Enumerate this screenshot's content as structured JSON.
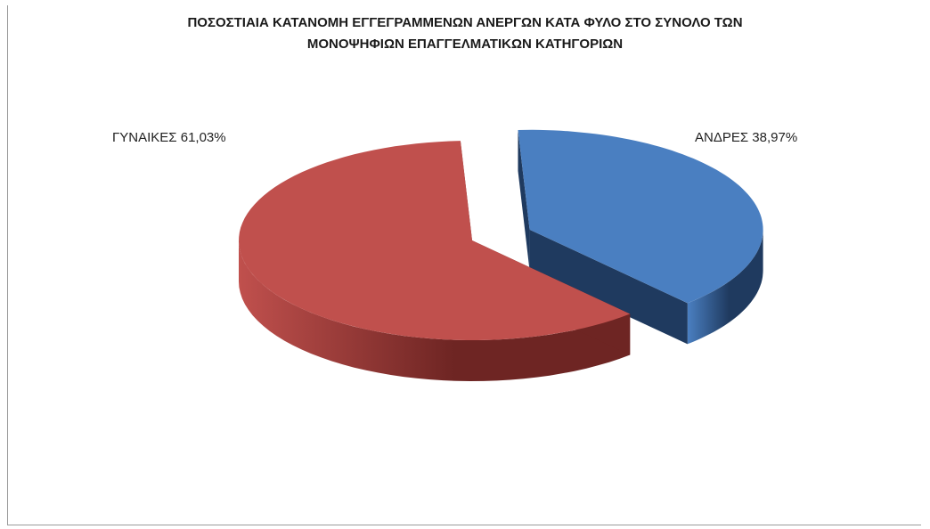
{
  "chart_data": {
    "type": "pie",
    "title_lines": [
      "ΠΟΣΟΣΤΙΑΙΑ ΚΑΤΑΝΟΜΗ ΕΓΓΕΓΡΑΜΜΕΝΩΝ ΑΝΕΡΓΩΝ ΚΑΤΑ ΦΥΛΟ ΣΤΟ ΣΥΝΟΛΟ ΤΩΝ",
      "ΜΟΝΟΨΗΦΙΩΝ ΕΠΑΓΓΕΛΜΑΤΙΚΩΝ ΚΑΤΗΓΟΡΙΩΝ"
    ],
    "slices": [
      {
        "label": "ΑΝΔΡΕΣ  38,97%",
        "value": 38.97,
        "color": "#4a7fc1",
        "side_color": "#1f3a5f",
        "exploded": true
      },
      {
        "label": "ΓΥΝΑΙΚΕΣ 61,03%",
        "value": 61.03,
        "color": "#c0504d",
        "side_color": "#6e2523",
        "exploded": false
      }
    ],
    "style": "3d-exploded",
    "legend": "none"
  }
}
